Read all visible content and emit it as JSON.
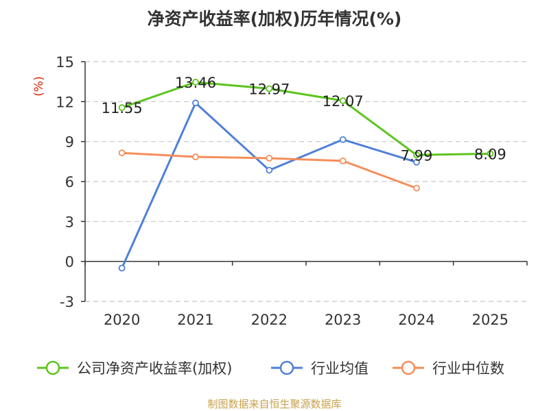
{
  "chart_data": {
    "type": "line",
    "title": "净资产收益率(加权)历年情况(%)",
    "ylabel": "(%)",
    "xlabel": "",
    "ylim": [
      -3,
      15
    ],
    "yticks": [
      "15",
      "12",
      "9",
      "6",
      "3",
      "0",
      "-3"
    ],
    "categories": [
      "2020",
      "2021",
      "2022",
      "2023",
      "2024",
      "2025"
    ],
    "grid": true,
    "legend_position": "bottom",
    "series": [
      {
        "name": "公司净资产收益率(加权)",
        "color": "#5cc41c",
        "values": [
          11.55,
          13.46,
          12.97,
          12.07,
          7.99,
          8.09
        ],
        "labels": [
          "11.55",
          "13.46",
          "12.97",
          "12.07",
          "7.99",
          "8.09"
        ]
      },
      {
        "name": "行业均值",
        "color": "#4f7fd8",
        "values": [
          -0.5,
          11.9,
          6.85,
          9.15,
          7.45,
          null
        ]
      },
      {
        "name": "行业中位数",
        "color": "#f58d5a",
        "values": [
          8.15,
          7.85,
          7.75,
          7.55,
          5.5,
          null
        ]
      }
    ]
  },
  "source": "制图数据来自恒生聚源数据库"
}
